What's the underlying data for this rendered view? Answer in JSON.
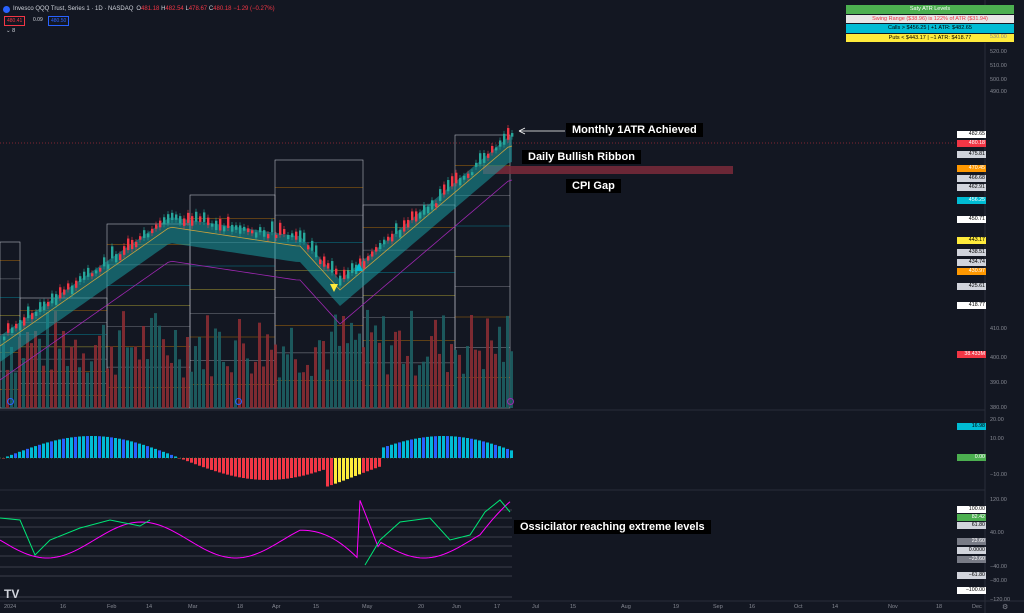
{
  "header": {
    "symbol_line": "Invesco QQQ Trust, Series 1 · 1D · NASDAQ",
    "ohlc": {
      "o_label": "O",
      "o": "481.18",
      "h_label": "H",
      "h": "482.54",
      "l_label": "L",
      "l": "478.67",
      "c_label": "C",
      "c": "480.18",
      "change": "−1.29 (−0.27%)"
    },
    "sell_price": "480.41",
    "spread": "0.09",
    "buy_price": "480.50",
    "indicator_toggle": "8"
  },
  "atr_table": {
    "title": "Saty ATR Levels",
    "swing": "Swing Range ($38.96) is 122% of ATR ($31.94)",
    "calls": "Calls > $456.25 | +1 ATR: $482.65",
    "puts": "Puts < $443.17 | −1 ATR: $418.77",
    "colors": {
      "title": "#4caf50",
      "swing": "#e6e6e6",
      "calls": "#00bcd4",
      "puts": "#ffeb3b"
    }
  },
  "annotations": {
    "monthly": "Monthly 1ATR Achieved",
    "ribbon": "Daily Bullish Ribbon",
    "cpi": "CPI Gap",
    "oscillator": "Ossicilator reaching extreme levels"
  },
  "price_scale": [
    "530.00",
    "520.00",
    "510.00",
    "500.00",
    "490.00",
    "410.00",
    "400.00",
    "390.00",
    "380.00"
  ],
  "price_labels": [
    {
      "text": "482.65",
      "bg": "#ffffff",
      "fg": "#000000"
    },
    {
      "text": "480.18",
      "bg": "#f23645",
      "fg": "#ffffff"
    },
    {
      "text": "475.81",
      "bg": "#d1d4dc",
      "fg": "#000000"
    },
    {
      "text": "470.45",
      "bg": "#ff9800",
      "fg": "#ffffff"
    },
    {
      "text": "466.68",
      "bg": "#d1d4dc",
      "fg": "#000000"
    },
    {
      "text": "462.91",
      "bg": "#d1d4dc",
      "fg": "#000000"
    },
    {
      "text": "456.25",
      "bg": "#00bcd4",
      "fg": "#ffffff"
    },
    {
      "text": "450.71",
      "bg": "#ffffff",
      "fg": "#000000"
    },
    {
      "text": "443.17",
      "bg": "#ffeb3b",
      "fg": "#000000"
    },
    {
      "text": "438.51",
      "bg": "#d1d4dc",
      "fg": "#000000"
    },
    {
      "text": "434.74",
      "bg": "#d1d4dc",
      "fg": "#000000"
    },
    {
      "text": "430.97",
      "bg": "#ff9800",
      "fg": "#ffffff"
    },
    {
      "text": "425.61",
      "bg": "#d1d4dc",
      "fg": "#000000"
    },
    {
      "text": "418.77",
      "bg": "#ffffff",
      "fg": "#000000"
    },
    {
      "text": "38.433M",
      "bg": "#f23645",
      "fg": "#ffffff"
    }
  ],
  "momentum_scale": [
    "20.00",
    "10.00",
    "−10.00"
  ],
  "momentum_labels": [
    {
      "text": "16.98",
      "bg": "#00bcd4",
      "fg": "#000000"
    },
    {
      "text": "0.00",
      "bg": "#4caf50",
      "fg": "#ffffff"
    }
  ],
  "osc_scale": [
    "120.00",
    "40.00",
    "−40.00",
    "−80.00",
    "−120.00"
  ],
  "osc_labels": [
    {
      "text": "100.00",
      "bg": "#ffffff",
      "fg": "#000000"
    },
    {
      "text": "82.42",
      "bg": "#4caf50",
      "fg": "#ffffff"
    },
    {
      "text": "61.80",
      "bg": "#d1d4dc",
      "fg": "#000000"
    },
    {
      "text": "23.60",
      "bg": "#787b86",
      "fg": "#ffffff"
    },
    {
      "text": "0.0000",
      "bg": "#d1d4dc",
      "fg": "#000000"
    },
    {
      "text": "−23.60",
      "bg": "#787b86",
      "fg": "#ffffff"
    },
    {
      "text": "−61.80",
      "bg": "#d1d4dc",
      "fg": "#000000"
    },
    {
      "text": "−100.00",
      "bg": "#ffffff",
      "fg": "#000000"
    }
  ],
  "x_axis": [
    "2024",
    "16",
    "Feb",
    "14",
    "Mar",
    "18",
    "Apr",
    "15",
    "May",
    "20",
    "Jun",
    "17",
    "Jul",
    "15",
    "Aug",
    "19",
    "Sep",
    "16",
    "Oct",
    "14",
    "Nov",
    "18",
    "Dec"
  ],
  "tv_logo": "TV",
  "settings_icon": "gear-icon"
}
